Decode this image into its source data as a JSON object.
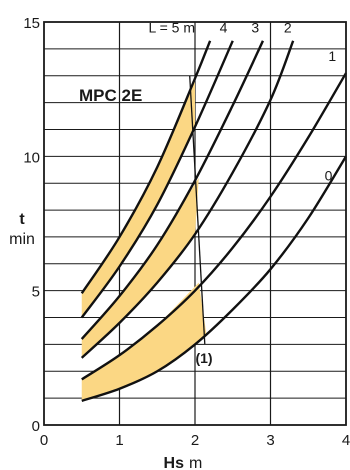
{
  "chart_data": {
    "type": "line",
    "title": "MPC 2E",
    "xlabel": "Hs",
    "xunit": "m",
    "ylabel": "t",
    "yunit": "min",
    "xlim": [
      0,
      4
    ],
    "ylim": [
      0,
      15
    ],
    "x_ticks": [
      "0",
      "1",
      "2",
      "3",
      "4"
    ],
    "y_ticks": [
      "0",
      "5",
      "10",
      "15"
    ],
    "grid": true,
    "curve_label_prefix": "L = ",
    "curve_label_unit": "m",
    "series": [
      {
        "name": "0",
        "x": [
          0.5,
          1.0,
          1.5,
          2.0,
          2.5,
          3.0,
          3.5,
          4.0
        ],
        "y": [
          0.9,
          1.35,
          2.0,
          3.0,
          4.3,
          5.8,
          7.7,
          10.0
        ]
      },
      {
        "name": "1",
        "x": [
          0.5,
          1.0,
          1.5,
          2.0,
          2.5,
          3.0,
          3.5,
          4.0
        ],
        "y": [
          1.7,
          2.6,
          3.7,
          5.0,
          6.6,
          8.5,
          10.7,
          13.1
        ]
      },
      {
        "name": "2",
        "x": [
          0.5,
          1.0,
          1.5,
          2.0,
          2.5,
          3.0,
          3.3
        ],
        "y": [
          2.5,
          3.8,
          5.3,
          7.1,
          9.4,
          12.1,
          14.3
        ]
      },
      {
        "name": "3",
        "x": [
          0.5,
          1.0,
          1.5,
          2.0,
          2.5,
          2.9
        ],
        "y": [
          3.2,
          4.8,
          6.7,
          9.1,
          11.9,
          14.3
        ]
      },
      {
        "name": "4",
        "x": [
          0.5,
          1.0,
          1.5,
          2.0,
          2.5
        ],
        "y": [
          4.0,
          5.9,
          8.2,
          11.1,
          14.3
        ]
      },
      {
        "name": "5",
        "x": [
          0.5,
          1.0,
          1.5,
          2.0,
          2.2
        ],
        "y": [
          4.9,
          7.0,
          9.6,
          12.9,
          14.3
        ]
      }
    ],
    "shaded_regions": [
      {
        "x": [
          0.5,
          1.0,
          1.5,
          2.0,
          2.0,
          1.5,
          1.0,
          0.5
        ],
        "y": [
          4.0,
          5.9,
          8.2,
          11.1,
          12.9,
          9.6,
          7.0,
          4.9
        ]
      },
      {
        "x": [
          0.5,
          1.0,
          1.5,
          2.0,
          2.05,
          1.5,
          1.0,
          0.5
        ],
        "y": [
          2.5,
          3.8,
          5.3,
          7.1,
          9.2,
          6.7,
          4.8,
          3.2
        ]
      },
      {
        "x": [
          0.5,
          1.0,
          1.5,
          2.0,
          2.15,
          2.05,
          1.5,
          1.0,
          0.5
        ],
        "y": [
          0.9,
          1.35,
          2.0,
          3.0,
          3.4,
          5.3,
          3.7,
          2.6,
          1.7
        ]
      }
    ],
    "reference_line": {
      "x": [
        1.93,
        2.13
      ],
      "y": [
        13.0,
        3.0
      ],
      "label": "(1)",
      "label_x": 2.12,
      "label_y": 2.3
    },
    "colors": {
      "shade": "#fbd784",
      "line": "#111111",
      "grid": "#1a1a1a"
    }
  }
}
